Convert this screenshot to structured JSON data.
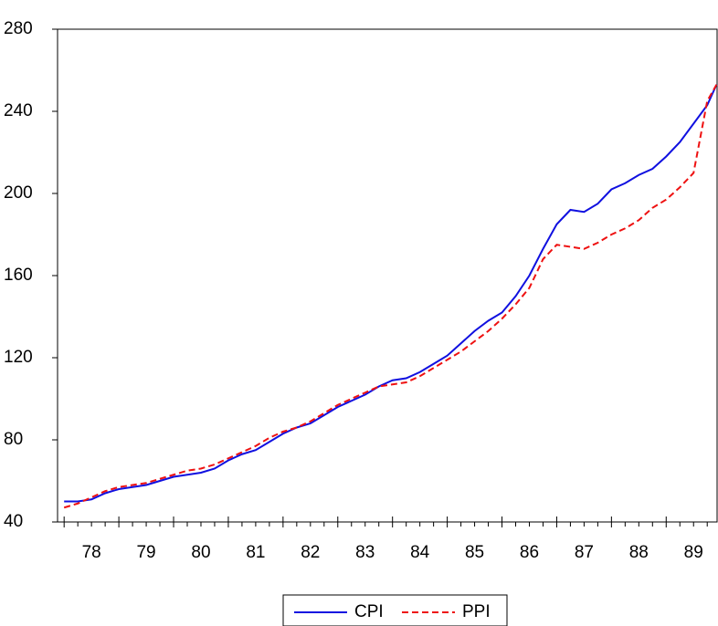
{
  "chart_data": {
    "type": "line",
    "x": [
      78,
      78.25,
      78.5,
      78.75,
      79,
      79.25,
      79.5,
      79.75,
      80,
      80.25,
      80.5,
      80.75,
      81,
      81.25,
      81.5,
      81.75,
      82,
      82.25,
      82.5,
      82.75,
      83,
      83.25,
      83.5,
      83.75,
      84,
      84.25,
      84.5,
      84.75,
      85,
      85.25,
      85.5,
      85.75,
      86,
      86.25,
      86.5,
      86.75,
      87,
      87.25,
      87.5,
      87.75,
      88,
      88.25,
      88.5,
      88.75,
      89,
      89.25,
      89.5,
      89.75,
      89.92
    ],
    "series": [
      {
        "name": "CPI",
        "color": "#1010e0",
        "dash": false,
        "values": [
          50,
          50,
          51,
          54,
          56,
          57,
          58,
          60,
          62,
          63,
          64,
          66,
          70,
          73,
          75,
          79,
          83,
          86,
          88,
          92,
          96,
          99,
          102,
          106,
          109,
          110,
          113,
          117,
          121,
          127,
          133,
          138,
          142,
          150,
          160,
          173,
          185,
          192,
          191,
          195,
          202,
          205,
          209,
          212,
          218,
          225,
          234,
          243,
          253
        ]
      },
      {
        "name": "PPI",
        "color": "#ee1111",
        "dash": true,
        "values": [
          47,
          49,
          52,
          55,
          57,
          58,
          59,
          61,
          63,
          65,
          66,
          68,
          71,
          74,
          77,
          81,
          84,
          86,
          89,
          93,
          97,
          100,
          103,
          106,
          107,
          108,
          111,
          115,
          119,
          123,
          128,
          133,
          139,
          146,
          154,
          168,
          175,
          174,
          173,
          176,
          180,
          183,
          187,
          193,
          197,
          203,
          210,
          245,
          253
        ]
      }
    ],
    "xlim": [
      77.88,
      89.93
    ],
    "xticks": [
      78,
      79,
      80,
      81,
      82,
      83,
      84,
      85,
      86,
      87,
      88,
      89
    ],
    "ylim": [
      40,
      280
    ],
    "yticks": [
      40,
      80,
      120,
      160,
      200,
      240,
      280
    ]
  }
}
